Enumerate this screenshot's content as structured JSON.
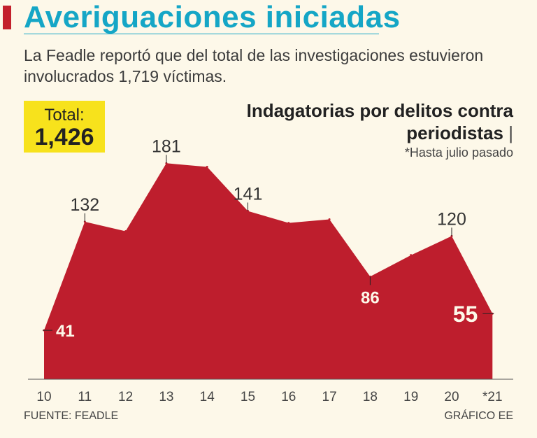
{
  "header": {
    "title": "Averiguaciones iniciadas",
    "subtitle": "La Feadle reportó que del total de las investigaciones estuvieron involucrados 1,719 víctimas."
  },
  "total": {
    "label": "Total:",
    "value": "1,426"
  },
  "source": "FUENTE: FEADLE",
  "credit": "GRÁFICO EE",
  "colors": {
    "area": "#be1e2d",
    "title": "#15a6c6",
    "highlight": "#f7e21c",
    "background": "#fdf8e9"
  },
  "chart_data": {
    "type": "area",
    "title_line1": "Indagatorias por delitos contra",
    "title_line2": "periodistas",
    "title_suffix": "|",
    "note": "*Hasta julio pasado",
    "categories": [
      "10",
      "11",
      "12",
      "13",
      "14",
      "15",
      "16",
      "17",
      "18",
      "19",
      "20",
      "*21"
    ],
    "values": [
      41,
      132,
      124,
      181,
      178,
      141,
      131,
      134,
      86,
      104,
      120,
      55
    ],
    "ylim": [
      0,
      190
    ],
    "labels": [
      {
        "index": 0,
        "text": "41",
        "style": "inside"
      },
      {
        "index": 1,
        "text": "132",
        "style": "above"
      },
      {
        "index": 3,
        "text": "181",
        "style": "above"
      },
      {
        "index": 5,
        "text": "141",
        "style": "above"
      },
      {
        "index": 8,
        "text": "86",
        "style": "inside"
      },
      {
        "index": 10,
        "text": "120",
        "style": "above"
      },
      {
        "index": 11,
        "text": "55",
        "style": "inside-large"
      }
    ],
    "grid": false
  }
}
